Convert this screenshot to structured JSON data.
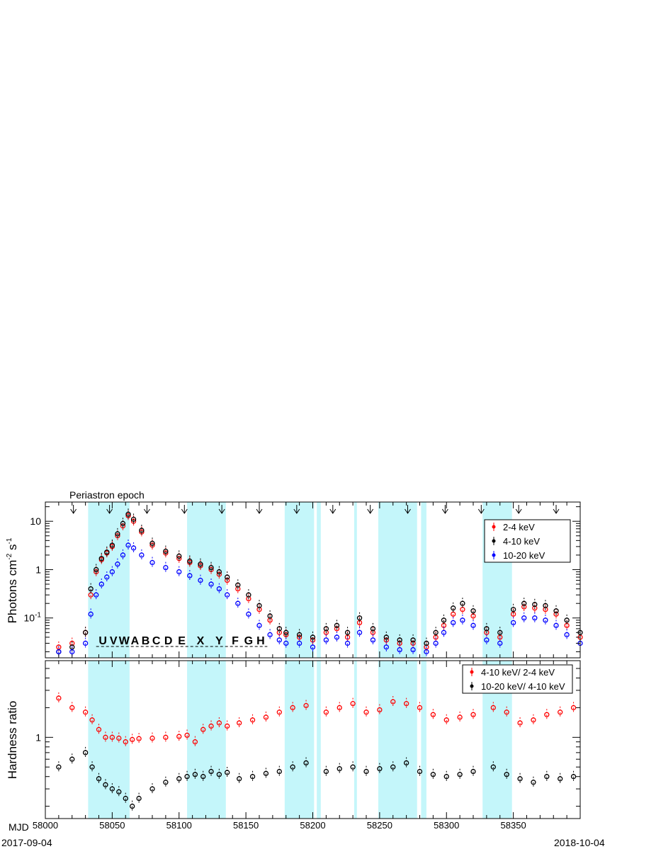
{
  "chart_data": [
    {
      "type": "scatter",
      "annotation": "Periastron epoch",
      "ylabel": "Photons cm^-2 s^-1",
      "yscale": "log",
      "ylim": [
        0.015,
        25
      ],
      "yticks": [
        {
          "v": 0.1,
          "label": "10^-1"
        },
        {
          "v": 1,
          "label": "1"
        },
        {
          "v": 10,
          "label": "10"
        }
      ],
      "xlim": [
        58000,
        58400
      ],
      "xticks": [
        58000,
        58050,
        58100,
        58150,
        58200,
        58250,
        58300,
        58350
      ],
      "grid": false,
      "legend": {
        "placement": "top-right",
        "entries": [
          {
            "label": "2-4 keV",
            "color": "#ff0000"
          },
          {
            "label": "4-10 keV",
            "color": "#000000"
          },
          {
            "label": "10-20 keV",
            "color": "#0000ff"
          }
        ]
      },
      "periastron_mjd": [
        58021,
        58048,
        58076,
        58104,
        58132,
        58160,
        58188,
        58215,
        58243,
        58271,
        58299,
        58326,
        58354,
        58382
      ],
      "shaded_mjd_ranges": [
        [
          58032,
          58063
        ],
        [
          58106,
          58135
        ],
        [
          58179,
          58201
        ],
        [
          58203,
          58206
        ],
        [
          58231,
          58233
        ],
        [
          58249,
          58278
        ],
        [
          58281,
          58285
        ],
        [
          58327,
          58349
        ]
      ],
      "phase_labels": [
        {
          "text": "U",
          "x": 58043
        },
        {
          "text": "V",
          "x": 58051
        },
        {
          "text": "W",
          "x": 58059
        },
        {
          "text": "A",
          "x": 58067
        },
        {
          "text": "B",
          "x": 58075
        },
        {
          "text": "C",
          "x": 58083
        },
        {
          "text": "D",
          "x": 58092
        },
        {
          "text": "E",
          "x": 58102
        },
        {
          "text": "X",
          "x": 58116
        },
        {
          "text": "Y",
          "x": 58130
        },
        {
          "text": "F",
          "x": 58142
        },
        {
          "text": "G",
          "x": 58152
        },
        {
          "text": "H",
          "x": 58161
        }
      ],
      "series": [
        {
          "name": "2-4 keV",
          "color": "#ff0000",
          "x": [
            58010,
            58020,
            58030,
            58034,
            58038,
            58042,
            58046,
            58050,
            58054,
            58058,
            58062,
            58066,
            58072,
            58080,
            58090,
            58100,
            58108,
            58116,
            58124,
            58130,
            58136,
            58144,
            58152,
            58160,
            58168,
            58175,
            58180,
            58190,
            58200,
            58210,
            58218,
            58226,
            58235,
            58245,
            58255,
            58265,
            58275,
            58285,
            58292,
            58298,
            58305,
            58312,
            58320,
            58330,
            58340,
            58350,
            58358,
            58366,
            58374,
            58382,
            58390,
            58400
          ],
          "y": [
            0.025,
            0.03,
            0.05,
            0.3,
            0.9,
            1.6,
            2.2,
            3,
            5,
            8,
            13,
            10,
            6,
            3.2,
            2.2,
            1.7,
            1.4,
            1.2,
            1,
            0.8,
            0.6,
            0.4,
            0.25,
            0.15,
            0.09,
            0.05,
            0.045,
            0.04,
            0.035,
            0.05,
            0.06,
            0.04,
            0.08,
            0.05,
            0.035,
            0.03,
            0.03,
            0.025,
            0.04,
            0.07,
            0.12,
            0.15,
            0.11,
            0.05,
            0.04,
            0.12,
            0.17,
            0.16,
            0.15,
            0.12,
            0.07,
            0.04
          ]
        },
        {
          "name": "4-10 keV",
          "color": "#000000",
          "x": [
            58010,
            58020,
            58030,
            58034,
            58038,
            58042,
            58046,
            58050,
            58054,
            58058,
            58062,
            58066,
            58072,
            58080,
            58090,
            58100,
            58108,
            58116,
            58124,
            58130,
            58136,
            58144,
            58152,
            58160,
            58168,
            58175,
            58180,
            58190,
            58200,
            58210,
            58218,
            58226,
            58235,
            58245,
            58255,
            58265,
            58275,
            58285,
            58292,
            58298,
            58305,
            58312,
            58320,
            58330,
            58340,
            58350,
            58358,
            58366,
            58374,
            58382,
            58390,
            58400
          ],
          "y": [
            0.02,
            0.025,
            0.05,
            0.4,
            1,
            1.7,
            2.3,
            3.2,
            5.5,
            9,
            14,
            11,
            6.5,
            3.5,
            2.4,
            1.9,
            1.5,
            1.3,
            1.1,
            0.9,
            0.7,
            0.48,
            0.3,
            0.18,
            0.11,
            0.06,
            0.05,
            0.045,
            0.04,
            0.06,
            0.07,
            0.05,
            0.1,
            0.06,
            0.04,
            0.035,
            0.035,
            0.03,
            0.05,
            0.09,
            0.16,
            0.2,
            0.14,
            0.06,
            0.05,
            0.15,
            0.2,
            0.19,
            0.18,
            0.14,
            0.09,
            0.05
          ]
        },
        {
          "name": "10-20 keV",
          "color": "#0000ff",
          "x": [
            58010,
            58020,
            58030,
            58034,
            58038,
            58042,
            58046,
            58050,
            58054,
            58058,
            58062,
            58066,
            58072,
            58080,
            58090,
            58100,
            58108,
            58116,
            58124,
            58130,
            58136,
            58144,
            58152,
            58160,
            58168,
            58175,
            58180,
            58190,
            58200,
            58210,
            58218,
            58226,
            58235,
            58245,
            58255,
            58265,
            58275,
            58285,
            58292,
            58298,
            58305,
            58312,
            58320,
            58330,
            58340,
            58350,
            58358,
            58366,
            58374,
            58382,
            58390,
            58400
          ],
          "y": [
            0.02,
            0.02,
            0.03,
            0.12,
            0.3,
            0.5,
            0.7,
            0.9,
            1.3,
            2,
            3.2,
            2.8,
            2,
            1.4,
            1.1,
            0.9,
            0.75,
            0.6,
            0.5,
            0.4,
            0.3,
            0.2,
            0.12,
            0.07,
            0.045,
            0.035,
            0.03,
            0.03,
            0.025,
            0.035,
            0.04,
            0.03,
            0.05,
            0.035,
            0.025,
            0.022,
            0.022,
            0.02,
            0.03,
            0.05,
            0.08,
            0.09,
            0.07,
            0.035,
            0.03,
            0.08,
            0.1,
            0.1,
            0.09,
            0.07,
            0.045,
            0.03
          ]
        }
      ]
    },
    {
      "type": "scatter",
      "ylabel": "Hardness ratio",
      "yscale": "log",
      "ylim": [
        0.15,
        6
      ],
      "yticks": [
        {
          "v": 1,
          "label": "1"
        }
      ],
      "xlabel": "MJD",
      "xlim": [
        58000,
        58400
      ],
      "xticks": [
        58000,
        58050,
        58100,
        58150,
        58200,
        58250,
        58300,
        58350
      ],
      "date_start": "2017-09-04",
      "date_end": "2018-10-04",
      "grid": false,
      "legend": {
        "placement": "top-right",
        "entries": [
          {
            "label": "4-10 keV/ 2-4 keV",
            "color": "#ff0000"
          },
          {
            "label": "10-20 keV/ 4-10 keV",
            "color": "#000000"
          }
        ]
      },
      "series": [
        {
          "name": "4-10 keV/ 2-4 keV",
          "color": "#ff0000",
          "x": [
            58010,
            58020,
            58030,
            58035,
            58040,
            58045,
            58050,
            58055,
            58060,
            58065,
            58070,
            58080,
            58090,
            58100,
            58106,
            58112,
            58118,
            58124,
            58130,
            58136,
            58145,
            58155,
            58165,
            58175,
            58185,
            58195,
            58210,
            58220,
            58230,
            58240,
            58250,
            58260,
            58270,
            58280,
            58290,
            58300,
            58310,
            58320,
            58335,
            58345,
            58355,
            58365,
            58375,
            58385,
            58395
          ],
          "y": [
            2.5,
            2,
            1.8,
            1.5,
            1.2,
            1.0,
            1.0,
            0.98,
            0.9,
            0.95,
            0.97,
            0.98,
            1.0,
            1.02,
            1.05,
            0.9,
            1.2,
            1.3,
            1.4,
            1.3,
            1.4,
            1.5,
            1.6,
            1.8,
            2.0,
            2.1,
            1.8,
            2.0,
            2.2,
            1.8,
            1.9,
            2.3,
            2.2,
            2.0,
            1.7,
            1.5,
            1.6,
            1.7,
            2.0,
            1.8,
            1.4,
            1.5,
            1.7,
            1.8,
            2.0
          ]
        },
        {
          "name": "10-20 keV/ 4-10 keV",
          "color": "#000000",
          "x": [
            58010,
            58020,
            58030,
            58035,
            58040,
            58045,
            58050,
            58055,
            58060,
            58065,
            58070,
            58080,
            58090,
            58100,
            58106,
            58112,
            58118,
            58124,
            58130,
            58136,
            58145,
            58155,
            58165,
            58175,
            58185,
            58195,
            58210,
            58220,
            58230,
            58240,
            58250,
            58260,
            58270,
            58280,
            58290,
            58300,
            58310,
            58320,
            58335,
            58345,
            58355,
            58365,
            58375,
            58385,
            58395
          ],
          "y": [
            0.5,
            0.6,
            0.7,
            0.5,
            0.38,
            0.33,
            0.3,
            0.28,
            0.24,
            0.2,
            0.24,
            0.3,
            0.35,
            0.38,
            0.4,
            0.42,
            0.4,
            0.45,
            0.42,
            0.44,
            0.38,
            0.4,
            0.43,
            0.45,
            0.5,
            0.55,
            0.45,
            0.48,
            0.5,
            0.45,
            0.48,
            0.5,
            0.55,
            0.45,
            0.42,
            0.4,
            0.42,
            0.45,
            0.5,
            0.42,
            0.38,
            0.35,
            0.4,
            0.38,
            0.4
          ]
        }
      ]
    }
  ]
}
